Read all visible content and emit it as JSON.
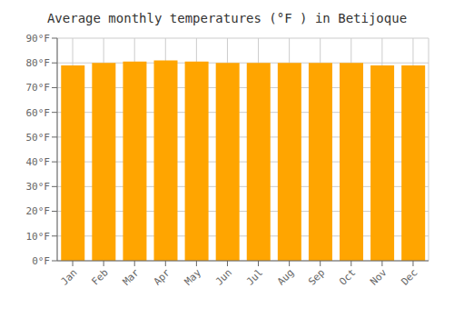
{
  "chart_data": {
    "type": "bar",
    "title": "Average monthly temperatures (°F ) in Betijoque",
    "categories": [
      "Jan",
      "Feb",
      "Mar",
      "Apr",
      "May",
      "Jun",
      "Jul",
      "Aug",
      "Sep",
      "Oct",
      "Nov",
      "Dec"
    ],
    "values": [
      79,
      80,
      80.5,
      81,
      80.5,
      80,
      80,
      80,
      80,
      80,
      79,
      79
    ],
    "color": "#FFA500",
    "ylim": [
      0,
      90
    ],
    "yticks": [
      {
        "value": 0,
        "label": "0°F"
      },
      {
        "value": 10,
        "label": "10°F"
      },
      {
        "value": 20,
        "label": "20°F"
      },
      {
        "value": 30,
        "label": "30°F"
      },
      {
        "value": 40,
        "label": "40°F"
      },
      {
        "value": 50,
        "label": "50°F"
      },
      {
        "value": 60,
        "label": "60°F"
      },
      {
        "value": 70,
        "label": "70°F"
      },
      {
        "value": 80,
        "label": "80°F"
      },
      {
        "value": 90,
        "label": "90°F"
      }
    ],
    "grid": true
  }
}
